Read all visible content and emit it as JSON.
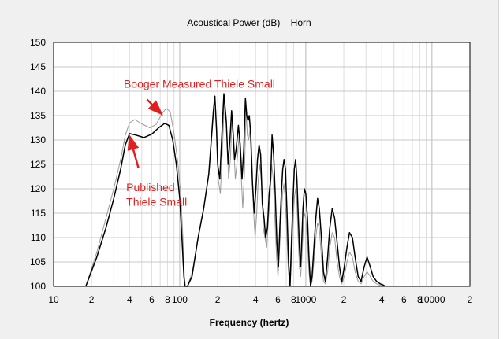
{
  "chart_data": {
    "type": "line",
    "title": "Acoustical Power (dB)    Horn",
    "xlabel": "Frequency (hertz)",
    "ylabel": "",
    "x_scale": "log",
    "xlim": [
      10,
      20000
    ],
    "ylim": [
      100,
      150
    ],
    "grid": true,
    "x_tick_labels": [
      {
        "value": 10,
        "label": "10"
      },
      {
        "value": 20,
        "label": "2"
      },
      {
        "value": 40,
        "label": "4"
      },
      {
        "value": 60,
        "label": "6"
      },
      {
        "value": 80,
        "label": "8"
      },
      {
        "value": 100,
        "label": "100"
      },
      {
        "value": 200,
        "label": "2"
      },
      {
        "value": 400,
        "label": "4"
      },
      {
        "value": 600,
        "label": "6"
      },
      {
        "value": 800,
        "label": "8"
      },
      {
        "value": 1000,
        "label": "1000"
      },
      {
        "value": 2000,
        "label": "2"
      },
      {
        "value": 4000,
        "label": "4"
      },
      {
        "value": 6000,
        "label": "6"
      },
      {
        "value": 8000,
        "label": "8"
      },
      {
        "value": 10000,
        "label": "10000"
      },
      {
        "value": 20000,
        "label": "2"
      }
    ],
    "y_ticks": [
      100,
      105,
      110,
      115,
      120,
      125,
      130,
      135,
      140,
      145,
      150
    ],
    "series": [
      {
        "color": "#000000",
        "points": [
          [
            18,
            100
          ],
          [
            22,
            106
          ],
          [
            26,
            112
          ],
          [
            30,
            118
          ],
          [
            34,
            124
          ],
          [
            37,
            129
          ],
          [
            40,
            131.3
          ],
          [
            45,
            131
          ],
          [
            52,
            130.5
          ],
          [
            60,
            131.2
          ],
          [
            68,
            132.5
          ],
          [
            76,
            133.4
          ],
          [
            82,
            133
          ],
          [
            88,
            130
          ],
          [
            94,
            125
          ],
          [
            100,
            118
          ],
          [
            104,
            110
          ],
          [
            108,
            102
          ],
          [
            110,
            100
          ],
          [
            115,
            100
          ],
          [
            125,
            102
          ],
          [
            140,
            110
          ],
          [
            155,
            116
          ],
          [
            170,
            123
          ],
          [
            185,
            136
          ],
          [
            190,
            139
          ],
          [
            196,
            132
          ],
          [
            200,
            125
          ],
          [
            208,
            122
          ],
          [
            216,
            131
          ],
          [
            224,
            139.5
          ],
          [
            234,
            134
          ],
          [
            242,
            125
          ],
          [
            250,
            130
          ],
          [
            258,
            136
          ],
          [
            266,
            131
          ],
          [
            272,
            126
          ],
          [
            280,
            128
          ],
          [
            292,
            133
          ],
          [
            302,
            129
          ],
          [
            312,
            122
          ],
          [
            322,
            128
          ],
          [
            332,
            138.5
          ],
          [
            340,
            135
          ],
          [
            348,
            134
          ],
          [
            356,
            135
          ],
          [
            366,
            131
          ],
          [
            378,
            121
          ],
          [
            390,
            115
          ],
          [
            402,
            120
          ],
          [
            414,
            126
          ],
          [
            426,
            129
          ],
          [
            438,
            127
          ],
          [
            452,
            117
          ],
          [
            466,
            114
          ],
          [
            480,
            110
          ],
          [
            496,
            112
          ],
          [
            512,
            119
          ],
          [
            526,
            122
          ],
          [
            540,
            131
          ],
          [
            556,
            127
          ],
          [
            574,
            118
          ],
          [
            590,
            109
          ],
          [
            606,
            104
          ],
          [
            622,
            112
          ],
          [
            640,
            119
          ],
          [
            656,
            124
          ],
          [
            672,
            126
          ],
          [
            690,
            124
          ],
          [
            710,
            115
          ],
          [
            730,
            105
          ],
          [
            750,
            100
          ],
          [
            770,
            109
          ],
          [
            790,
            117
          ],
          [
            810,
            124
          ],
          [
            830,
            126
          ],
          [
            850,
            122
          ],
          [
            870,
            115
          ],
          [
            890,
            108
          ],
          [
            910,
            104
          ],
          [
            930,
            110
          ],
          [
            950,
            116
          ],
          [
            975,
            120
          ],
          [
            1000,
            119
          ],
          [
            1030,
            114
          ],
          [
            1060,
            106
          ],
          [
            1090,
            100
          ],
          [
            1120,
            102
          ],
          [
            1160,
            108
          ],
          [
            1200,
            114
          ],
          [
            1240,
            118
          ],
          [
            1280,
            116
          ],
          [
            1330,
            110
          ],
          [
            1380,
            103
          ],
          [
            1430,
            101
          ],
          [
            1490,
            106
          ],
          [
            1550,
            112
          ],
          [
            1620,
            116
          ],
          [
            1690,
            114
          ],
          [
            1770,
            109
          ],
          [
            1850,
            104
          ],
          [
            1930,
            101
          ],
          [
            2020,
            104
          ],
          [
            2120,
            108
          ],
          [
            2220,
            111
          ],
          [
            2340,
            110
          ],
          [
            2460,
            106
          ],
          [
            2600,
            102
          ],
          [
            2740,
            101
          ],
          [
            2900,
            104
          ],
          [
            3060,
            106
          ],
          [
            3240,
            104
          ],
          [
            3420,
            102
          ],
          [
            3650,
            101
          ],
          [
            3900,
            100.5
          ],
          [
            4200,
            100.2
          ]
        ]
      },
      {
        "color": "#9a9a9a",
        "points": [
          [
            18,
            100
          ],
          [
            22,
            107
          ],
          [
            26,
            114
          ],
          [
            30,
            120
          ],
          [
            34,
            126
          ],
          [
            37,
            131
          ],
          [
            40,
            133.5
          ],
          [
            44,
            134.2
          ],
          [
            50,
            133.3
          ],
          [
            58,
            132.5
          ],
          [
            65,
            133.2
          ],
          [
            72,
            135.3
          ],
          [
            78,
            136.5
          ],
          [
            84,
            135.8
          ],
          [
            90,
            131.5
          ],
          [
            96,
            126
          ],
          [
            102,
            119
          ],
          [
            106,
            110
          ],
          [
            109,
            102
          ],
          [
            111,
            100
          ],
          [
            115,
            100
          ],
          [
            126,
            103
          ],
          [
            142,
            111
          ],
          [
            157,
            117
          ],
          [
            172,
            124
          ],
          [
            186,
            136
          ],
          [
            191,
            139
          ],
          [
            197,
            130
          ],
          [
            202,
            122
          ],
          [
            210,
            119
          ],
          [
            218,
            128
          ],
          [
            226,
            138
          ],
          [
            236,
            132
          ],
          [
            244,
            122
          ],
          [
            252,
            126
          ],
          [
            260,
            134
          ],
          [
            268,
            129
          ],
          [
            276,
            122
          ],
          [
            284,
            125
          ],
          [
            296,
            131
          ],
          [
            306,
            124
          ],
          [
            316,
            116
          ],
          [
            326,
            123
          ],
          [
            336,
            136
          ],
          [
            344,
            131
          ],
          [
            352,
            130
          ],
          [
            360,
            132
          ],
          [
            372,
            125
          ],
          [
            384,
            116
          ],
          [
            396,
            110
          ],
          [
            408,
            115
          ],
          [
            420,
            122
          ],
          [
            432,
            125
          ],
          [
            446,
            121
          ],
          [
            460,
            112
          ],
          [
            474,
            110
          ],
          [
            490,
            108
          ],
          [
            506,
            114
          ],
          [
            520,
            118
          ],
          [
            536,
            125
          ],
          [
            552,
            122
          ],
          [
            570,
            113
          ],
          [
            586,
            106
          ],
          [
            602,
            102
          ],
          [
            620,
            108
          ],
          [
            638,
            114
          ],
          [
            654,
            119
          ],
          [
            670,
            121
          ],
          [
            688,
            118
          ],
          [
            708,
            110
          ],
          [
            728,
            103
          ],
          [
            750,
            100
          ],
          [
            770,
            105
          ],
          [
            790,
            112
          ],
          [
            810,
            118
          ],
          [
            830,
            120
          ],
          [
            850,
            117
          ],
          [
            870,
            110
          ],
          [
            890,
            104
          ],
          [
            910,
            102
          ],
          [
            930,
            106
          ],
          [
            950,
            111
          ],
          [
            975,
            115
          ],
          [
            1000,
            114
          ],
          [
            1030,
            109
          ],
          [
            1060,
            103
          ],
          [
            1090,
            100
          ],
          [
            1120,
            101
          ],
          [
            1160,
            105
          ],
          [
            1200,
            110
          ],
          [
            1240,
            113
          ],
          [
            1280,
            112
          ],
          [
            1330,
            106
          ],
          [
            1380,
            101
          ],
          [
            1430,
            100.5
          ],
          [
            1490,
            103
          ],
          [
            1550,
            108
          ],
          [
            1620,
            111
          ],
          [
            1690,
            110
          ],
          [
            1770,
            105
          ],
          [
            1850,
            102
          ],
          [
            1930,
            100.5
          ],
          [
            2020,
            102
          ],
          [
            2120,
            105
          ],
          [
            2220,
            107
          ],
          [
            2340,
            106
          ],
          [
            2460,
            103
          ],
          [
            2600,
            101
          ],
          [
            2740,
            100.5
          ],
          [
            2900,
            102
          ],
          [
            3060,
            103
          ],
          [
            3240,
            102
          ],
          [
            3420,
            101
          ],
          [
            3650,
            100.5
          ],
          [
            3900,
            100.2
          ],
          [
            4200,
            100
          ]
        ]
      }
    ],
    "annotations": [
      {
        "text": "Booger Measured Thiele Small",
        "text_x": 36,
        "text_y": 140.7,
        "arrow_from": [
          55,
          138.3
        ],
        "arrow_to": [
          72,
          135.3
        ]
      },
      {
        "text": "Published",
        "text_x": 37.7,
        "text_y": 119.5,
        "arrow_from": [
          47,
          124.3
        ],
        "arrow_to": [
          40,
          130.8
        ]
      },
      {
        "text": "Thiele Small",
        "text_x": 37.7,
        "text_y": 116.5
      }
    ]
  }
}
